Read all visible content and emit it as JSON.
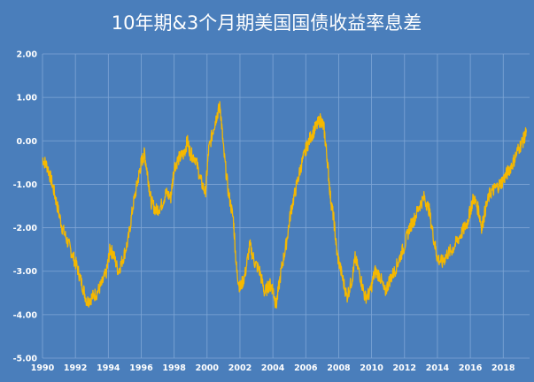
{
  "chart_data": {
    "type": "line",
    "title": "10年期&3个月期美国国债收益率息差",
    "xlabel": "",
    "ylabel": "",
    "xlim": [
      1990,
      2019.6
    ],
    "ylim": [
      -5,
      2
    ],
    "x_ticks": [
      1990,
      1992,
      1994,
      1996,
      1998,
      2000,
      2002,
      2004,
      2006,
      2008,
      2010,
      2012,
      2014,
      2016,
      2018
    ],
    "x_tick_labels": [
      "1990",
      "1992",
      "1994",
      "1996",
      "1998",
      "2000",
      "2002",
      "2004",
      "2006",
      "2008",
      "2010",
      "2012",
      "2014",
      "2016",
      "2018"
    ],
    "y_ticks": [
      2,
      1,
      0,
      -1,
      -2,
      -3,
      -4,
      -5
    ],
    "y_tick_labels": [
      "2.00",
      "1.00",
      "0.00",
      "-1.00",
      "-2.00",
      "-3.00",
      "-4.00",
      "-5.00"
    ],
    "grid": true,
    "colors": {
      "background": "#4a7ebb",
      "line": "#f5b800",
      "grid": "#7fa6d6",
      "text": "#ffffff"
    },
    "series": [
      {
        "values": [
          [
            1990.0,
            -0.4
          ],
          [
            1990.3,
            -0.6
          ],
          [
            1990.6,
            -1.0
          ],
          [
            1990.9,
            -1.5
          ],
          [
            1991.2,
            -2.0
          ],
          [
            1991.5,
            -2.3
          ],
          [
            1991.8,
            -2.6
          ],
          [
            1992.1,
            -2.9
          ],
          [
            1992.4,
            -3.3
          ],
          [
            1992.7,
            -3.7
          ],
          [
            1993.0,
            -3.6
          ],
          [
            1993.3,
            -3.5
          ],
          [
            1993.6,
            -3.3
          ],
          [
            1993.9,
            -3.0
          ],
          [
            1994.1,
            -2.5
          ],
          [
            1994.3,
            -2.6
          ],
          [
            1994.6,
            -3.0
          ],
          [
            1994.9,
            -2.7
          ],
          [
            1995.2,
            -2.3
          ],
          [
            1995.5,
            -1.5
          ],
          [
            1995.8,
            -0.9
          ],
          [
            1996.0,
            -0.5
          ],
          [
            1996.2,
            -0.3
          ],
          [
            1996.4,
            -0.8
          ],
          [
            1996.6,
            -1.4
          ],
          [
            1996.9,
            -1.6
          ],
          [
            1997.2,
            -1.5
          ],
          [
            1997.5,
            -1.2
          ],
          [
            1997.8,
            -1.3
          ],
          [
            1998.0,
            -0.6
          ],
          [
            1998.3,
            -0.4
          ],
          [
            1998.6,
            -0.3
          ],
          [
            1998.8,
            0.0
          ],
          [
            1999.0,
            -0.3
          ],
          [
            1999.3,
            -0.4
          ],
          [
            1999.6,
            -0.9
          ],
          [
            1999.9,
            -1.2
          ],
          [
            2000.1,
            -0.2
          ],
          [
            2000.4,
            0.3
          ],
          [
            2000.6,
            0.6
          ],
          [
            2000.8,
            0.8
          ],
          [
            2001.0,
            -0.2
          ],
          [
            2001.3,
            -1.2
          ],
          [
            2001.6,
            -1.8
          ],
          [
            2001.8,
            -3.0
          ],
          [
            2002.0,
            -3.4
          ],
          [
            2002.3,
            -3.1
          ],
          [
            2002.6,
            -2.4
          ],
          [
            2002.9,
            -2.8
          ],
          [
            2003.2,
            -3.0
          ],
          [
            2003.5,
            -3.5
          ],
          [
            2003.8,
            -3.3
          ],
          [
            2004.0,
            -3.4
          ],
          [
            2004.2,
            -3.8
          ],
          [
            2004.5,
            -3.0
          ],
          [
            2004.8,
            -2.4
          ],
          [
            2005.1,
            -1.6
          ],
          [
            2005.4,
            -1.1
          ],
          [
            2005.7,
            -0.6
          ],
          [
            2006.0,
            -0.2
          ],
          [
            2006.3,
            0.1
          ],
          [
            2006.6,
            0.3
          ],
          [
            2006.9,
            0.5
          ],
          [
            2007.1,
            0.3
          ],
          [
            2007.3,
            -0.4
          ],
          [
            2007.5,
            -1.3
          ],
          [
            2007.7,
            -1.8
          ],
          [
            2007.9,
            -2.6
          ],
          [
            2008.2,
            -3.1
          ],
          [
            2008.5,
            -3.6
          ],
          [
            2008.8,
            -3.2
          ],
          [
            2009.0,
            -2.7
          ],
          [
            2009.3,
            -3.1
          ],
          [
            2009.6,
            -3.6
          ],
          [
            2009.9,
            -3.5
          ],
          [
            2010.2,
            -3.0
          ],
          [
            2010.5,
            -3.1
          ],
          [
            2010.8,
            -3.5
          ],
          [
            2011.1,
            -3.2
          ],
          [
            2011.4,
            -3.0
          ],
          [
            2011.7,
            -2.7
          ],
          [
            2012.0,
            -2.4
          ],
          [
            2012.3,
            -2.0
          ],
          [
            2012.6,
            -1.8
          ],
          [
            2012.9,
            -1.5
          ],
          [
            2013.2,
            -1.3
          ],
          [
            2013.5,
            -1.6
          ],
          [
            2013.8,
            -2.3
          ],
          [
            2014.0,
            -2.7
          ],
          [
            2014.3,
            -2.8
          ],
          [
            2014.6,
            -2.6
          ],
          [
            2014.9,
            -2.5
          ],
          [
            2015.2,
            -2.3
          ],
          [
            2015.5,
            -2.1
          ],
          [
            2015.8,
            -1.9
          ],
          [
            2016.0,
            -1.6
          ],
          [
            2016.2,
            -1.3
          ],
          [
            2016.5,
            -1.6
          ],
          [
            2016.7,
            -2.0
          ],
          [
            2016.9,
            -1.6
          ],
          [
            2017.2,
            -1.2
          ],
          [
            2017.5,
            -1.1
          ],
          [
            2017.8,
            -1.0
          ],
          [
            2018.0,
            -0.9
          ],
          [
            2018.3,
            -0.7
          ],
          [
            2018.6,
            -0.5
          ],
          [
            2018.9,
            -0.2
          ],
          [
            2019.2,
            0.0
          ],
          [
            2019.4,
            0.2
          ]
        ]
      }
    ]
  }
}
